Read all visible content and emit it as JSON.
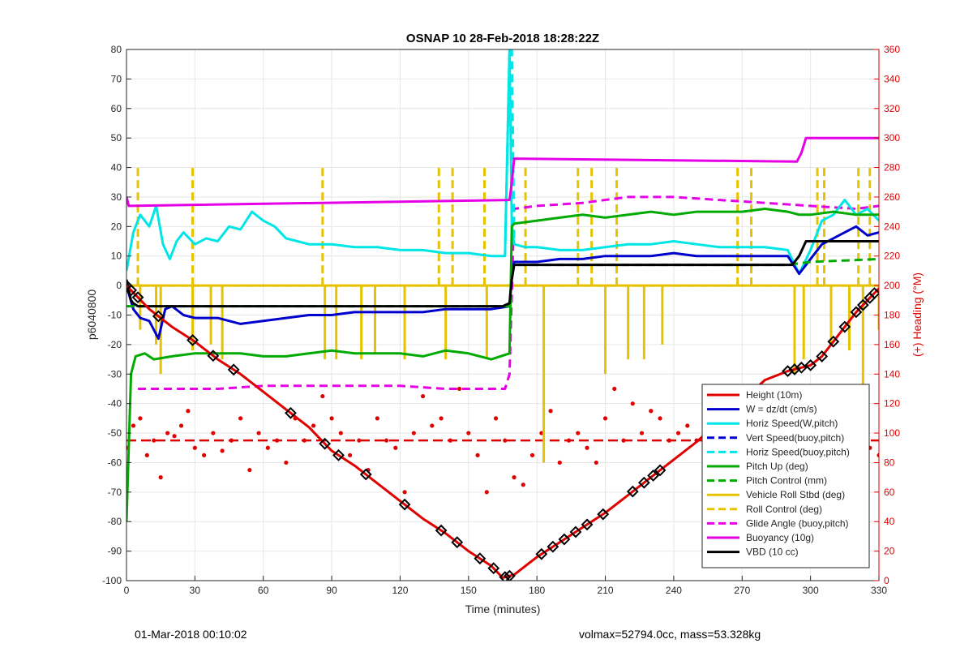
{
  "chart_data": {
    "type": "line",
    "title": "OSNAP 10 28-Feb-2018 18:28:22Z",
    "xlabel": "Time (minutes)",
    "ylabel": "p6040800",
    "y2label": "(+) Heading (°M)",
    "xlim": [
      0,
      330
    ],
    "ylim": [
      -100,
      80
    ],
    "y2lim": [
      0,
      360
    ],
    "xticks": [
      "0",
      "30",
      "60",
      "90",
      "120",
      "150",
      "180",
      "210",
      "240",
      "270",
      "300",
      "330"
    ],
    "yticks": [
      "80",
      "70",
      "60",
      "50",
      "40",
      "30",
      "20",
      "10",
      "0",
      "-10",
      "-20",
      "-30",
      "-40",
      "-50",
      "-60",
      "-70",
      "-80",
      "-90",
      "-100"
    ],
    "y2ticks": [
      "360",
      "340",
      "320",
      "300",
      "280",
      "260",
      "240",
      "220",
      "200",
      "180",
      "160",
      "140",
      "120",
      "100",
      "80",
      "60",
      "40",
      "20",
      "0"
    ],
    "grid": true,
    "legend_position": "bottom-right",
    "colors": {
      "height": "#e00000",
      "w": "#0000cc",
      "horiz_w": "#00e6e6",
      "vert_buoy": "#0000cc",
      "horiz_buoy": "#00e6e6",
      "pitch_up": "#00aa00",
      "pitch_ctrl": "#00aa00",
      "roll": "#e6c300",
      "roll_ctrl": "#e6c300",
      "glide": "#e600e6",
      "buoyancy": "#e600e6",
      "vbd": "#000000",
      "heading": "#e00000"
    },
    "series": [
      {
        "key": "height",
        "name": "Height (10m)",
        "style": "solid",
        "x": [
          0,
          5,
          10,
          20,
          30,
          40,
          50,
          60,
          70,
          80,
          90,
          100,
          110,
          120,
          130,
          140,
          150,
          160,
          165,
          170,
          175,
          180,
          190,
          200,
          210,
          220,
          230,
          240,
          250,
          260,
          270,
          280,
          290,
          300,
          305,
          310,
          315,
          320,
          325,
          330
        ],
        "y": [
          0,
          -4,
          -8,
          -14,
          -19,
          -25,
          -30,
          -36,
          -42,
          -48,
          -56,
          -61,
          -67,
          -73,
          -79,
          -84,
          -90,
          -95,
          -99,
          -98,
          -95,
          -92,
          -87,
          -82,
          -77,
          -71,
          -65,
          -59,
          -53,
          -46,
          -39,
          -32,
          -29,
          -27,
          -24,
          -19,
          -14,
          -9,
          -5,
          -1
        ]
      },
      {
        "key": "w",
        "name": "W = dz/dt (cm/s)",
        "style": "solid",
        "x": [
          0,
          3,
          6,
          10,
          14,
          17,
          20,
          25,
          30,
          40,
          50,
          60,
          70,
          80,
          90,
          100,
          110,
          120,
          130,
          140,
          150,
          160,
          168,
          169,
          170,
          180,
          190,
          200,
          210,
          220,
          230,
          240,
          250,
          260,
          270,
          280,
          290,
          295,
          300,
          305,
          310,
          315,
          320,
          325,
          330
        ],
        "y": [
          0,
          -8,
          -11,
          -12,
          -18,
          -8,
          -7,
          -10,
          -11,
          -11,
          -13,
          -12,
          -11,
          -10,
          -10,
          -9,
          -9,
          -9,
          -9,
          -8,
          -8,
          -8,
          -7,
          4,
          8,
          8,
          9,
          9,
          10,
          10,
          10,
          11,
          10,
          10,
          10,
          10,
          10,
          4,
          9,
          14,
          16,
          18,
          20,
          17,
          18
        ]
      },
      {
        "key": "horiz_w",
        "name": "Horiz Speed(W,pitch)",
        "style": "solid",
        "x": [
          0,
          3,
          6,
          10,
          13,
          16,
          19,
          22,
          25,
          30,
          35,
          40,
          45,
          50,
          55,
          60,
          65,
          70,
          75,
          80,
          90,
          100,
          110,
          120,
          130,
          140,
          150,
          160,
          166,
          168,
          169,
          170,
          175,
          180,
          190,
          200,
          210,
          220,
          230,
          240,
          250,
          260,
          270,
          280,
          290,
          295,
          300,
          305,
          310,
          315,
          320,
          325,
          330
        ],
        "y": [
          5,
          18,
          24,
          20,
          27,
          14,
          9,
          15,
          18,
          14,
          16,
          15,
          20,
          19,
          25,
          22,
          20,
          16,
          15,
          14,
          14,
          13,
          13,
          12,
          12,
          11,
          11,
          10,
          10,
          80,
          20,
          14,
          13,
          13,
          12,
          12,
          13,
          14,
          14,
          15,
          14,
          13,
          13,
          13,
          12,
          4,
          12,
          22,
          24,
          29,
          24,
          26,
          22
        ]
      },
      {
        "key": "vert_buoy",
        "name": "Vert Speed(buoy,pitch)",
        "style": "dashed",
        "x": [
          0,
          330
        ],
        "y": [
          -52,
          -52
        ],
        "axis": "y2_unused"
      },
      {
        "key": "horiz_buoy",
        "name": "Horiz Speed(buoy,pitch)",
        "style": "dashed",
        "x": [
          166,
          168,
          169,
          170
        ],
        "y": [
          10,
          80,
          80,
          15
        ]
      },
      {
        "key": "pitch_up",
        "name": "Pitch Up (deg)",
        "style": "solid",
        "x": [
          0,
          2,
          4,
          8,
          12,
          20,
          30,
          40,
          50,
          60,
          70,
          80,
          90,
          100,
          110,
          120,
          130,
          140,
          150,
          160,
          168,
          169,
          170,
          180,
          190,
          200,
          210,
          220,
          230,
          240,
          250,
          260,
          270,
          280,
          290,
          295,
          300,
          310,
          320,
          330
        ],
        "y": [
          -80,
          -30,
          -24,
          -23,
          -25,
          -24,
          -23,
          -23,
          -23,
          -24,
          -24,
          -23,
          -22,
          -23,
          -23,
          -23,
          -24,
          -22,
          -23,
          -25,
          -23,
          20,
          21,
          22,
          23,
          24,
          23,
          24,
          25,
          24,
          25,
          25,
          25,
          26,
          25,
          24,
          24,
          25,
          24,
          24
        ]
      },
      {
        "key": "pitch_ctrl",
        "name": "Pitch Control (mm)",
        "style": "dashed",
        "x": [
          0,
          168,
          169,
          170,
          290,
          300,
          330
        ],
        "y": [
          -7,
          -7,
          5,
          7,
          7,
          8,
          9
        ]
      },
      {
        "key": "roll",
        "name": "Vehicle Roll Stbd (deg)",
        "style": "solid",
        "x": [
          0,
          330
        ],
        "y": [
          0,
          0
        ]
      },
      {
        "key": "roll_ctrl",
        "name": "Roll Control (deg)",
        "style": "dashed",
        "x": [
          0,
          330
        ],
        "y": [
          0,
          0
        ]
      },
      {
        "key": "glide",
        "name": "Glide Angle (buoy,pitch)",
        "style": "dashed",
        "x": [
          5,
          20,
          40,
          60,
          80,
          100,
          120,
          140,
          160,
          166,
          168,
          170,
          180,
          200,
          220,
          240,
          260,
          280,
          300,
          320,
          330
        ],
        "y": [
          -35,
          -35,
          -35,
          -34,
          -34,
          -34,
          -34,
          -35,
          -35,
          -35,
          -30,
          26,
          27,
          28,
          30,
          30,
          29,
          28,
          27,
          26,
          27
        ]
      },
      {
        "key": "buoyancy",
        "name": "Buoyancy (10g)",
        "style": "solid",
        "x": [
          0,
          1,
          168,
          169,
          170,
          294,
          296,
          298,
          330
        ],
        "y": [
          30,
          27,
          29,
          35,
          43,
          42,
          45,
          50,
          50
        ]
      },
      {
        "key": "vbd",
        "name": "VBD (10 cc)",
        "style": "solid",
        "x": [
          0,
          2,
          3,
          5,
          165,
          168,
          169,
          170,
          292,
          295,
          298,
          330
        ],
        "y": [
          2,
          -5,
          -6,
          -7,
          -7,
          -6,
          2,
          7,
          7,
          10,
          15,
          15
        ]
      }
    ],
    "roll_spikes": [
      {
        "x": 5,
        "y": 40
      },
      {
        "x": 6,
        "y": -15
      },
      {
        "x": 13,
        "y": -20
      },
      {
        "x": 15,
        "y": -30
      },
      {
        "x": 29,
        "y": 40
      },
      {
        "x": 29,
        "y": -22
      },
      {
        "x": 37,
        "y": -20
      },
      {
        "x": 42,
        "y": -25
      },
      {
        "x": 86,
        "y": 40
      },
      {
        "x": 87,
        "y": -25
      },
      {
        "x": 92,
        "y": -25
      },
      {
        "x": 103,
        "y": -25
      },
      {
        "x": 109,
        "y": -23
      },
      {
        "x": 122,
        "y": -25
      },
      {
        "x": 137,
        "y": 40
      },
      {
        "x": 140,
        "y": -25
      },
      {
        "x": 143,
        "y": 40
      },
      {
        "x": 157,
        "y": 40
      },
      {
        "x": 158,
        "y": -25
      },
      {
        "x": 175,
        "y": 40
      },
      {
        "x": 183,
        "y": -60
      },
      {
        "x": 198,
        "y": 40
      },
      {
        "x": 204,
        "y": 40
      },
      {
        "x": 210,
        "y": -30
      },
      {
        "x": 215,
        "y": 40
      },
      {
        "x": 220,
        "y": -25
      },
      {
        "x": 227,
        "y": -25
      },
      {
        "x": 235,
        "y": -20
      },
      {
        "x": 268,
        "y": 40
      },
      {
        "x": 274,
        "y": 40
      },
      {
        "x": 293,
        "y": -30
      },
      {
        "x": 297,
        "y": -25
      },
      {
        "x": 303,
        "y": 40
      },
      {
        "x": 306,
        "y": 40
      },
      {
        "x": 309,
        "y": -20
      },
      {
        "x": 317,
        "y": -22
      },
      {
        "x": 321,
        "y": 40
      },
      {
        "x": 323,
        "y": -40
      },
      {
        "x": 326,
        "y": 40
      },
      {
        "x": 330,
        "y": -15
      }
    ],
    "heading": {
      "axis": "right",
      "x": [
        0,
        3,
        6,
        9,
        12,
        15,
        18,
        21,
        24,
        27,
        30,
        34,
        38,
        42,
        46,
        50,
        54,
        58,
        62,
        66,
        70,
        74,
        78,
        82,
        86,
        90,
        94,
        98,
        102,
        106,
        110,
        114,
        118,
        122,
        126,
        130,
        134,
        138,
        142,
        146,
        150,
        154,
        158,
        162,
        166,
        170,
        174,
        178,
        182,
        186,
        190,
        194,
        198,
        202,
        206,
        210,
        214,
        218,
        222,
        226,
        230,
        234,
        238,
        242,
        246,
        250,
        254,
        258,
        262,
        266,
        270,
        274,
        278,
        282,
        286,
        290,
        294,
        298,
        302,
        306,
        310,
        314,
        318,
        322,
        326,
        330
      ],
      "y": [
        90,
        105,
        110,
        85,
        95,
        70,
        100,
        98,
        105,
        115,
        90,
        85,
        100,
        88,
        95,
        110,
        75,
        100,
        90,
        95,
        80,
        110,
        95,
        105,
        125,
        110,
        100,
        85,
        95,
        75,
        110,
        95,
        90,
        60,
        100,
        125,
        105,
        110,
        95,
        130,
        100,
        85,
        60,
        110,
        95,
        70,
        65,
        85,
        100,
        115,
        80,
        95,
        100,
        90,
        80,
        110,
        130,
        95,
        120,
        100,
        115,
        110,
        95,
        100,
        105,
        95,
        90,
        100,
        95,
        110,
        100,
        95,
        105,
        90,
        100,
        85,
        95,
        115,
        90,
        100,
        110,
        95,
        100,
        105,
        90,
        85
      ],
      "y_ref_dashed": 95
    },
    "height_markers_x": [
      0,
      2,
      5,
      14,
      29,
      38,
      47,
      72,
      87,
      93,
      105,
      122,
      138,
      145,
      155,
      161,
      166,
      168,
      182,
      187,
      192,
      197,
      202,
      209,
      222,
      227,
      231,
      234,
      267,
      290,
      293,
      296,
      300,
      305,
      310,
      315,
      320,
      323,
      326,
      328
    ],
    "footer": {
      "left": "01-Mar-2018 00:10:02",
      "right": "volmax=52794.0cc, mass=53.328kg"
    }
  }
}
